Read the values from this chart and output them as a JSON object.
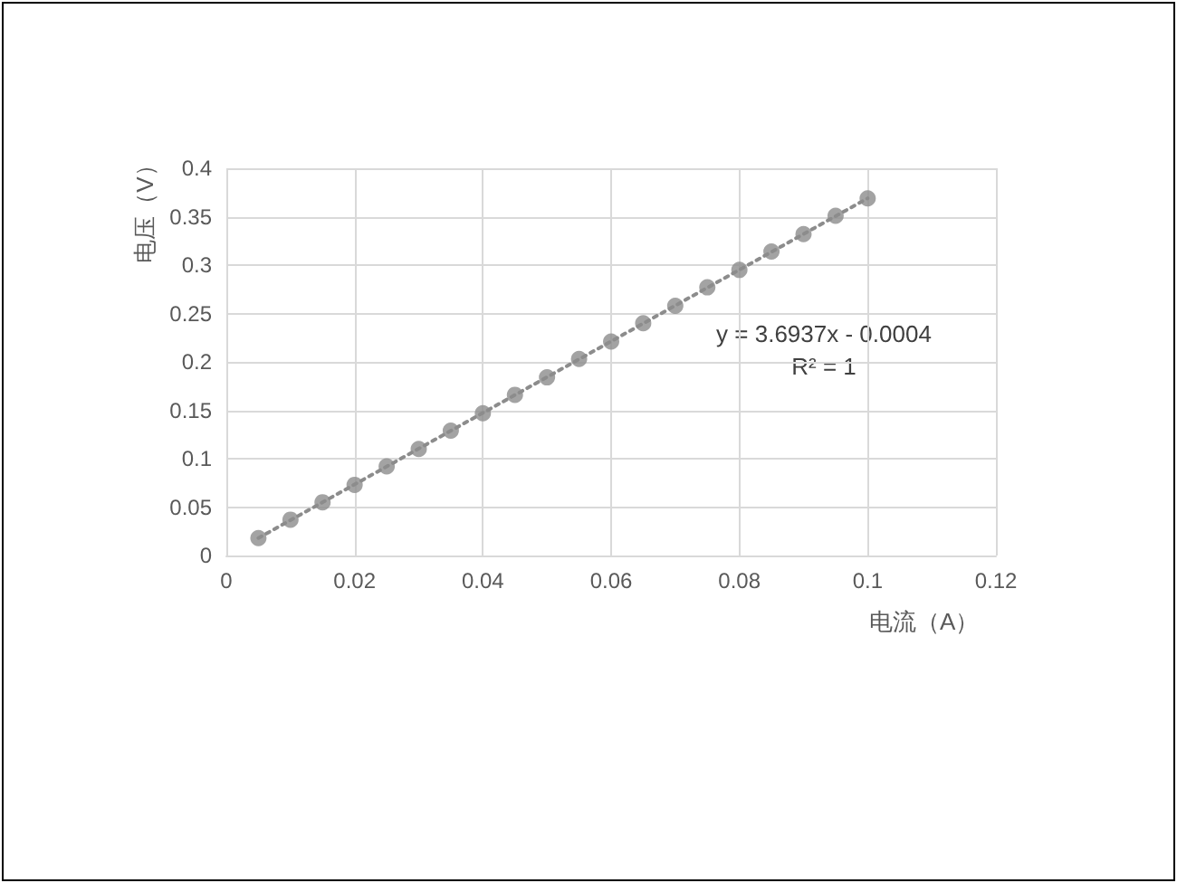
{
  "chart_data": {
    "type": "scatter",
    "xlabel": "电流（A）",
    "ylabel": "电压（V）",
    "xlim": [
      0,
      0.12
    ],
    "xticks": [
      0,
      0.02,
      0.04,
      0.06,
      0.08,
      0.1,
      0.12
    ],
    "ylim": [
      0,
      0.4
    ],
    "yticks": [
      0,
      0.05,
      0.1,
      0.15,
      0.2,
      0.25,
      0.3,
      0.35,
      0.4
    ],
    "grid": true,
    "marker": "circle",
    "series": [
      {
        "type": "scatter",
        "color": "#8c8c8c",
        "x": [
          0.005,
          0.01,
          0.015,
          0.02,
          0.025,
          0.03,
          0.035,
          0.04,
          0.045,
          0.05,
          0.055,
          0.06,
          0.065,
          0.07,
          0.075,
          0.08,
          0.085,
          0.09,
          0.095,
          0.1
        ],
        "values": [
          0.018,
          0.037,
          0.055,
          0.073,
          0.092,
          0.11,
          0.129,
          0.147,
          0.166,
          0.184,
          0.203,
          0.221,
          0.24,
          0.258,
          0.277,
          0.295,
          0.314,
          0.332,
          0.351,
          0.369
        ]
      },
      {
        "type": "line",
        "color": "#8c8c8c",
        "line_style": "dotted",
        "marker": "none",
        "x": [
          0.005,
          0.1
        ],
        "values": [
          0.018,
          0.369
        ]
      }
    ],
    "annotations": [
      "y = 3.6937x - 0.0004",
      "R² = 1"
    ]
  }
}
